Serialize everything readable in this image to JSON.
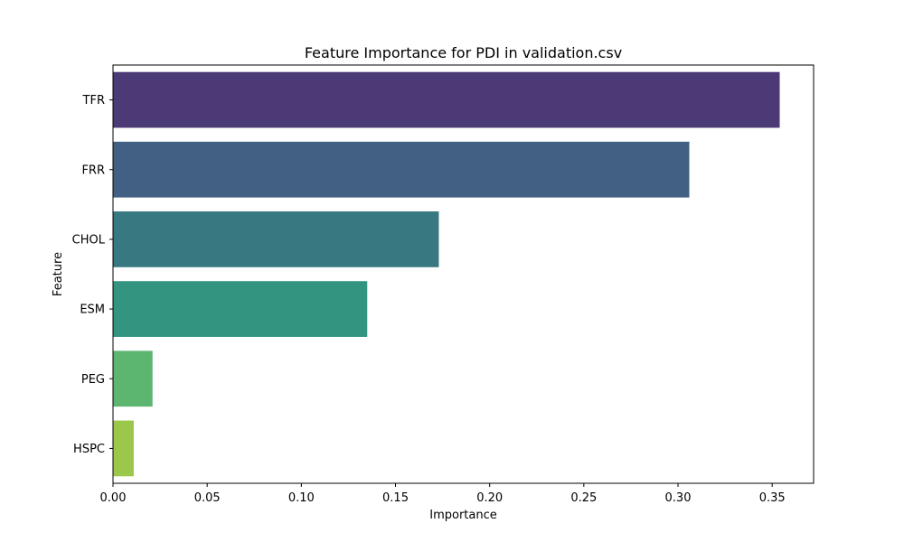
{
  "chart_data": {
    "type": "bar",
    "orientation": "horizontal",
    "title": "Feature Importance for PDI in validation.csv",
    "xlabel": "Importance",
    "ylabel": "Feature",
    "categories": [
      "TFR",
      "FRR",
      "CHOL",
      "ESM",
      "PEG",
      "HSPC"
    ],
    "values": [
      0.354,
      0.306,
      0.173,
      0.135,
      0.021,
      0.011
    ],
    "colors": [
      "#4b3a76",
      "#426084",
      "#377881",
      "#339580",
      "#5db670",
      "#9bc74b"
    ],
    "xlim": [
      0,
      0.372
    ],
    "xticks": [
      0.0,
      0.05,
      0.1,
      0.15,
      0.2,
      0.25,
      0.3,
      0.35
    ],
    "xtick_labels": [
      "0.00",
      "0.05",
      "0.10",
      "0.15",
      "0.20",
      "0.25",
      "0.30",
      "0.35"
    ],
    "grid": false,
    "legend": false
  }
}
